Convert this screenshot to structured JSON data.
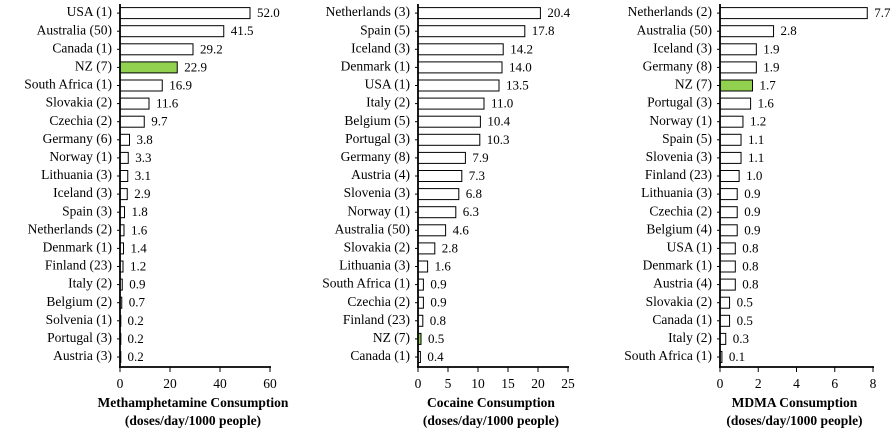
{
  "highlight_color": "#92D050",
  "bar_outline_color": "#000000",
  "chart_data": [
    {
      "type": "bar",
      "orientation": "horizontal",
      "title": "",
      "xlabel_line1": "Methamphetamine Consumption",
      "xlabel_line2": "(doses/day/1000 people)",
      "ylabel": "",
      "xlim": [
        0,
        60
      ],
      "xticks": [
        0,
        20,
        40,
        60
      ],
      "grid": false,
      "highlight": "NZ (7)",
      "categories": [
        "USA (1)",
        "Australia (50)",
        "Canada (1)",
        "NZ (7)",
        "South Africa (1)",
        "Slovakia (2)",
        "Czechia (2)",
        "Germany (6)",
        "Norway (1)",
        "Lithuania (3)",
        "Iceland (3)",
        "Spain (3)",
        "Netherlands (2)",
        "Denmark (1)",
        "Finland (23)",
        "Italy (2)",
        "Belgium (2)",
        "Solvenia (1)",
        "Portugal (3)",
        "Austria (3)"
      ],
      "values": [
        52.0,
        41.5,
        29.2,
        22.9,
        16.9,
        11.6,
        9.7,
        3.8,
        3.3,
        3.1,
        2.9,
        1.8,
        1.6,
        1.4,
        1.2,
        0.9,
        0.7,
        0.2,
        0.2,
        0.2
      ],
      "labels": [
        "52.0",
        "41.5",
        "29.2",
        "22.9",
        "16.9",
        "11.6",
        "9.7",
        "3.8",
        "3.3",
        "3.1",
        "2.9",
        "1.8",
        "1.6",
        "1.4",
        "1.2",
        "0.9",
        "0.7",
        "0.2",
        "0.2",
        "0.2"
      ]
    },
    {
      "type": "bar",
      "orientation": "horizontal",
      "title": "",
      "xlabel_line1": "Cocaine Consumption",
      "xlabel_line2": "(doses/day/1000 people)",
      "ylabel": "",
      "xlim": [
        0,
        25
      ],
      "xticks": [
        0,
        5,
        10,
        15,
        20,
        25
      ],
      "grid": false,
      "highlight": "NZ (7)",
      "categories": [
        "Netherlands (3)",
        "Spain (5)",
        "Iceland (3)",
        "Denmark (1)",
        "USA (1)",
        "Italy (2)",
        "Belgium (5)",
        "Portugal (3)",
        "Germany (8)",
        "Austria (4)",
        "Slovenia (3)",
        "Norway (1)",
        "Australia (50)",
        "Slovakia (2)",
        "Lithuania (3)",
        "South Africa (1)",
        "Czechia (2)",
        "Finland (23)",
        "NZ (7)",
        "Canada (1)"
      ],
      "values": [
        20.4,
        17.8,
        14.2,
        14.0,
        13.5,
        11.0,
        10.4,
        10.3,
        7.9,
        7.3,
        6.8,
        6.3,
        4.6,
        2.8,
        1.6,
        0.9,
        0.9,
        0.8,
        0.5,
        0.4
      ],
      "labels": [
        "20.4",
        "17.8",
        "14.2",
        "14.0",
        "13.5",
        "11.0",
        "10.4",
        "10.3",
        "7.9",
        "7.3",
        "6.8",
        "6.3",
        "4.6",
        "2.8",
        "1.6",
        "0.9",
        "0.9",
        "0.8",
        "0.5",
        "0.4"
      ]
    },
    {
      "type": "bar",
      "orientation": "horizontal",
      "title": "",
      "xlabel_line1": "MDMA Consumption",
      "xlabel_line2": "(doses/day/1000 people)",
      "ylabel": "",
      "xlim": [
        0,
        8
      ],
      "xticks": [
        0,
        2,
        4,
        6,
        8
      ],
      "grid": false,
      "highlight": "NZ (7)",
      "categories": [
        "Netherlands (2)",
        "Australia (50)",
        "Iceland (3)",
        "Germany (8)",
        "NZ (7)",
        "Portugal (3)",
        "Norway (1)",
        "Spain (5)",
        "Slovenia (3)",
        "Finland (23)",
        "Lithuania (3)",
        "Czechia (2)",
        "Belgium (4)",
        "USA (1)",
        "Denmark (1)",
        "Austria (4)",
        "Slovakia (2)",
        "Canada (1)",
        "Italy (2)",
        "South Africa (1)"
      ],
      "values": [
        7.7,
        2.8,
        1.9,
        1.9,
        1.7,
        1.6,
        1.2,
        1.1,
        1.1,
        1.0,
        0.9,
        0.9,
        0.9,
        0.8,
        0.8,
        0.8,
        0.5,
        0.5,
        0.3,
        0.1
      ],
      "labels": [
        "7.7",
        "2.8",
        "1.9",
        "1.9",
        "1.7",
        "1.6",
        "1.2",
        "1.1",
        "1.1",
        "1.0",
        "0.9",
        "0.9",
        "0.9",
        "0.8",
        "0.8",
        "0.8",
        "0.5",
        "0.5",
        "0.3",
        "0.1"
      ]
    }
  ]
}
